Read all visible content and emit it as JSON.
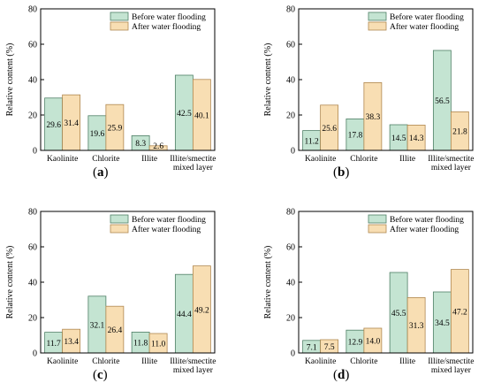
{
  "chart_data": [
    {
      "type": "bar",
      "panel_label": "a",
      "categories": [
        "Kaolinite",
        "Chlorite",
        "Illite",
        "Illite/smectite\nmixed layer"
      ],
      "series": [
        {
          "name": "Before water flooding",
          "values": [
            29.6,
            19.6,
            8.3,
            42.5
          ],
          "labels": [
            "29.6",
            "19.6",
            "8.3",
            "42.5"
          ]
        },
        {
          "name": "After water flooding",
          "values": [
            31.4,
            25.9,
            2.6,
            40.1
          ],
          "labels": [
            "31.4",
            "25.9",
            "2.6",
            "40.1"
          ]
        }
      ],
      "ylabel": "Relative content (%)",
      "ylim": [
        0,
        80
      ],
      "yticks": [
        "0",
        "20",
        "40",
        "60",
        "80"
      ],
      "legend": "top-center"
    },
    {
      "type": "bar",
      "panel_label": "b",
      "categories": [
        "Kaolinite",
        "Chlorite",
        "Illite",
        "Illite/smectite\nmixed layer"
      ],
      "series": [
        {
          "name": "Before water flooding",
          "values": [
            11.2,
            17.8,
            14.5,
            56.5
          ],
          "labels": [
            "11.2",
            "17.8",
            "14.5",
            "56.5"
          ]
        },
        {
          "name": "After water flooding",
          "values": [
            25.6,
            38.3,
            14.3,
            21.8
          ],
          "labels": [
            "25.6",
            "38.3",
            "14.3",
            "21.8"
          ]
        }
      ],
      "ylabel": "Relative content (%)",
      "ylim": [
        0,
        80
      ],
      "yticks": [
        "0",
        "20",
        "40",
        "60",
        "80"
      ],
      "legend": "top-center"
    },
    {
      "type": "bar",
      "panel_label": "c",
      "categories": [
        "Kaolinite",
        "Chlorite",
        "Illite",
        "Illite/smectite\nmixed layer"
      ],
      "series": [
        {
          "name": "Before water flooding",
          "values": [
            11.7,
            32.1,
            11.8,
            44.4
          ],
          "labels": [
            "11.7",
            "32.1",
            "11.8",
            "44.4"
          ]
        },
        {
          "name": "After water flooding",
          "values": [
            13.4,
            26.4,
            11.0,
            49.2
          ],
          "labels": [
            "13.4",
            "26.4",
            "11.0",
            "49.2"
          ]
        }
      ],
      "ylabel": "Relative content (%)",
      "ylim": [
        0,
        80
      ],
      "yticks": [
        "0",
        "20",
        "40",
        "60",
        "80"
      ],
      "legend": "top-center"
    },
    {
      "type": "bar",
      "panel_label": "d",
      "categories": [
        "Kaolinite",
        "Chlorite",
        "Illite",
        "Illite/smectite\nmixed layer"
      ],
      "series": [
        {
          "name": "Before water flooding",
          "values": [
            7.1,
            12.9,
            45.5,
            34.5
          ],
          "labels": [
            "7.1",
            "12.9",
            "45.5",
            "34.5"
          ]
        },
        {
          "name": "After water flooding",
          "values": [
            7.5,
            14.0,
            31.3,
            47.2
          ],
          "labels": [
            "7.5",
            "14.0",
            "31.3",
            "47.2"
          ]
        }
      ],
      "ylabel": "Relative content (%)",
      "ylim": [
        0,
        80
      ],
      "yticks": [
        "0",
        "20",
        "40",
        "60",
        "80"
      ],
      "legend": "top-center"
    }
  ],
  "colors": {
    "before_fill": "#c4e4d2",
    "before_stroke": "#4f7f66",
    "after_fill": "#f8deb3",
    "after_stroke": "#b08850",
    "axis": "#000000"
  }
}
